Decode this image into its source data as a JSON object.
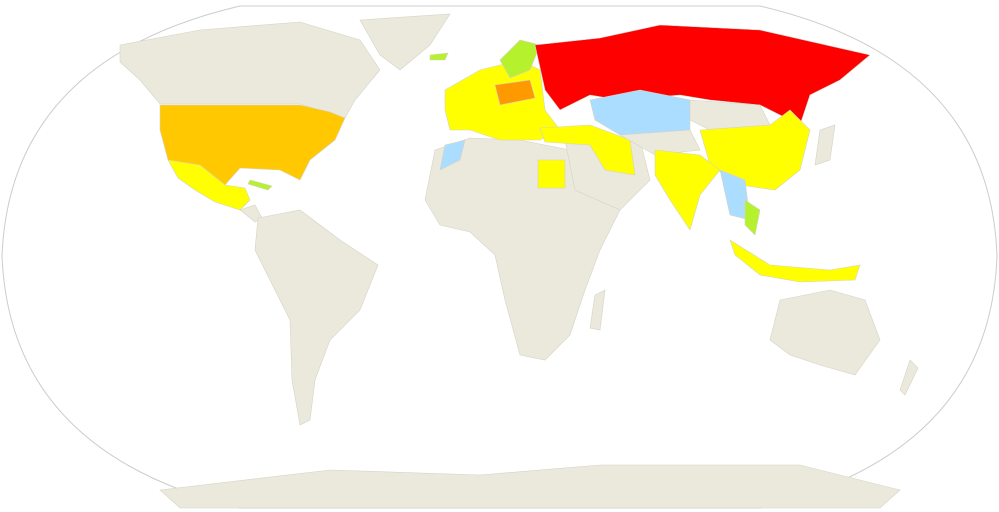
{
  "map": {
    "projection": "robinson",
    "colors": {
      "ocean": "#ffffff",
      "no_data": "#ebe8dc",
      "border": "#d6d3c6",
      "highest": "#ff0000",
      "high": "#ff9900",
      "upper_mid": "#ffc800",
      "mid": "#ffff00",
      "low": "#b5f22d",
      "lowest": "#aaddff",
      "outline": "#cccccc"
    }
  }
}
